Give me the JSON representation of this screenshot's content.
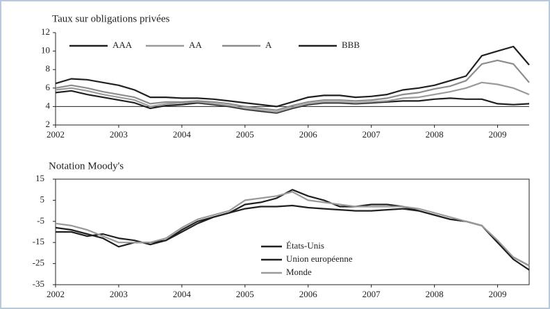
{
  "chart_data": [
    {
      "type": "line",
      "title": "Taux sur obligations privées",
      "x": [
        2002,
        2002.25,
        2002.5,
        2002.75,
        2003,
        2003.25,
        2003.5,
        2003.75,
        2004,
        2004.25,
        2004.5,
        2004.75,
        2005,
        2005.25,
        2005.5,
        2005.75,
        2006,
        2006.25,
        2006.5,
        2006.75,
        2007,
        2007.25,
        2007.5,
        2007.75,
        2008,
        2008.25,
        2008.5,
        2008.75,
        2009,
        2009.25,
        2009.5
      ],
      "series": [
        {
          "name": "AAA",
          "color": "#231f20",
          "values": [
            5.5,
            5.7,
            5.3,
            5.0,
            4.7,
            4.4,
            3.8,
            4.1,
            4.2,
            4.4,
            4.2,
            4.0,
            3.7,
            3.5,
            3.3,
            3.8,
            4.2,
            4.4,
            4.4,
            4.3,
            4.4,
            4.5,
            4.6,
            4.6,
            4.8,
            4.9,
            4.8,
            4.8,
            4.3,
            4.2,
            4.3
          ]
        },
        {
          "name": "AA",
          "color": "#9a9a9a",
          "values": [
            5.8,
            6.0,
            5.7,
            5.3,
            5.0,
            4.7,
            4.0,
            4.3,
            4.4,
            4.5,
            4.3,
            4.1,
            3.8,
            3.6,
            3.4,
            3.9,
            4.3,
            4.5,
            4.5,
            4.4,
            4.5,
            4.6,
            4.9,
            5.0,
            5.3,
            5.6,
            6.0,
            6.6,
            6.4,
            6.0,
            5.3
          ]
        },
        {
          "name": "A",
          "color": "#8c8c8c",
          "values": [
            6.0,
            6.3,
            6.0,
            5.6,
            5.3,
            5.0,
            4.3,
            4.5,
            4.5,
            4.6,
            4.5,
            4.3,
            4.0,
            3.8,
            3.6,
            4.1,
            4.5,
            4.7,
            4.7,
            4.6,
            4.7,
            4.9,
            5.3,
            5.5,
            5.9,
            6.2,
            6.8,
            8.6,
            9.0,
            8.6,
            6.6
          ]
        },
        {
          "name": "BBB",
          "color": "#231f20",
          "values": [
            6.5,
            7.0,
            6.9,
            6.6,
            6.3,
            5.8,
            5.0,
            5.0,
            4.9,
            4.9,
            4.8,
            4.6,
            4.4,
            4.2,
            4.0,
            4.5,
            5.0,
            5.2,
            5.2,
            5.0,
            5.1,
            5.3,
            5.8,
            6.0,
            6.3,
            6.8,
            7.3,
            9.5,
            10.0,
            10.5,
            8.5
          ]
        }
      ],
      "xlim": [
        2002,
        2009.5
      ],
      "xticks": [
        2002,
        2003,
        2004,
        2005,
        2006,
        2007,
        2008,
        2009
      ],
      "ylim": [
        2,
        12
      ],
      "yticks": [
        2,
        4,
        6,
        8,
        10,
        12
      ],
      "hline": 4
    },
    {
      "type": "line",
      "title": "Notation Moody's",
      "x": [
        2002,
        2002.25,
        2002.5,
        2002.75,
        2003,
        2003.25,
        2003.5,
        2003.75,
        2004,
        2004.25,
        2004.5,
        2004.75,
        2005,
        2005.25,
        2005.5,
        2005.75,
        2006,
        2006.25,
        2006.5,
        2006.75,
        2007,
        2007.25,
        2007.5,
        2007.75,
        2008,
        2008.25,
        2008.5,
        2008.75,
        2009,
        2009.25,
        2009.5
      ],
      "series": [
        {
          "name": "États-Unis",
          "color": "#231f20",
          "values": [
            -8,
            -9,
            -11,
            -13,
            -17,
            -15,
            -15,
            -14,
            -9,
            -5,
            -3,
            -1,
            3,
            4,
            6,
            10,
            7,
            5,
            2,
            2,
            3,
            3,
            2,
            0,
            -2,
            -4,
            -5,
            -7,
            -15,
            -23,
            -28
          ]
        },
        {
          "name": "Union européenne",
          "color": "#231f20",
          "values": [
            -10,
            -10,
            -12,
            -11,
            -13,
            -14,
            -16,
            -14,
            -10,
            -6,
            -3,
            -1,
            1,
            2,
            2,
            2.5,
            1.5,
            1,
            0.5,
            0,
            0,
            0.5,
            1,
            0,
            -2,
            -4,
            -5,
            -7,
            -15,
            -22,
            -26
          ]
        },
        {
          "name": "Monde",
          "color": "#9a9a9a",
          "values": [
            -6,
            -7,
            -9,
            -12,
            -15,
            -15,
            -15,
            -13,
            -8,
            -4,
            -2,
            0,
            5,
            6,
            7,
            9,
            5,
            4,
            3,
            2,
            2,
            2,
            2,
            1,
            -1,
            -3,
            -5,
            -7,
            -14,
            -22,
            -26
          ]
        }
      ],
      "xlim": [
        2002,
        2009.5
      ],
      "xticks": [
        2002,
        2003,
        2004,
        2005,
        2006,
        2007,
        2008,
        2009
      ],
      "ylim": [
        -35,
        15
      ],
      "yticks": [
        -35,
        -25,
        -15,
        -5,
        5,
        15
      ]
    }
  ]
}
